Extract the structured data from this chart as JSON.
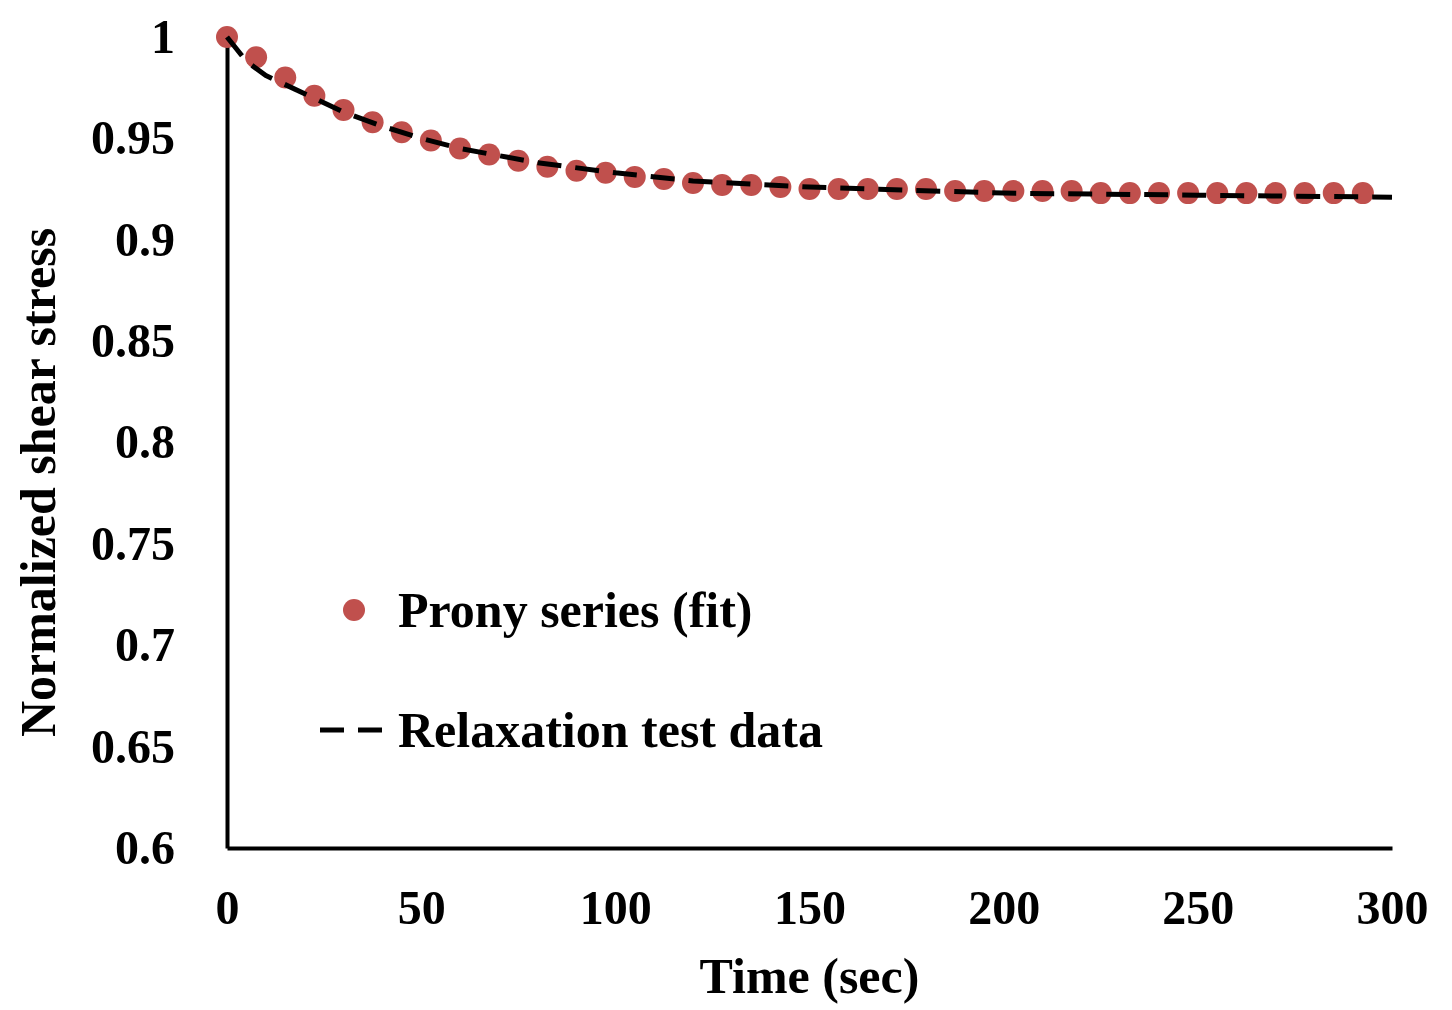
{
  "chart_data": {
    "type": "line",
    "xlabel": "Time (sec)",
    "ylabel": "Normalized shear stress",
    "xlim": [
      0,
      300
    ],
    "ylim": [
      0.6,
      1
    ],
    "xticks": [
      0,
      50,
      100,
      150,
      200,
      250,
      300
    ],
    "yticks": [
      0.6,
      0.65,
      0.7,
      0.75,
      0.8,
      0.85,
      0.9,
      0.95,
      1
    ],
    "grid": false,
    "legend": "left",
    "series": [
      {
        "name": "Prony series (fit)",
        "type": "scatter",
        "marker": "circle",
        "color": "#c0504d",
        "x": [
          0,
          7.5,
          15,
          22.5,
          30,
          37.5,
          45,
          52.5,
          60,
          67.5,
          75,
          82.5,
          90,
          97.5,
          105,
          112.5,
          120,
          127.5,
          135,
          142.5,
          150,
          157.5,
          165,
          172.5,
          180,
          187.5,
          195,
          202.5,
          210,
          217.5,
          225,
          232.5,
          240,
          247.5,
          255,
          262.5,
          270,
          277.5,
          285,
          292.5
        ],
        "values": [
          1.0,
          0.99,
          0.98,
          0.971,
          0.964,
          0.958,
          0.953,
          0.949,
          0.945,
          0.942,
          0.939,
          0.936,
          0.934,
          0.933,
          0.931,
          0.93,
          0.928,
          0.927,
          0.927,
          0.926,
          0.925,
          0.925,
          0.925,
          0.925,
          0.925,
          0.924,
          0.924,
          0.924,
          0.924,
          0.924,
          0.923,
          0.923,
          0.923,
          0.923,
          0.923,
          0.923,
          0.923,
          0.923,
          0.923,
          0.923
        ]
      },
      {
        "name": "Relaxation test data",
        "type": "line",
        "line_style": "dashed",
        "marker": "none",
        "color": "#000000",
        "x": [
          0,
          5,
          10,
          20,
          30,
          40,
          50,
          60,
          80,
          100,
          120,
          150,
          200,
          250,
          300
        ],
        "values": [
          1.0,
          0.988,
          0.981,
          0.972,
          0.963,
          0.956,
          0.95,
          0.945,
          0.938,
          0.933,
          0.929,
          0.926,
          0.923,
          0.922,
          0.921
        ]
      }
    ]
  }
}
